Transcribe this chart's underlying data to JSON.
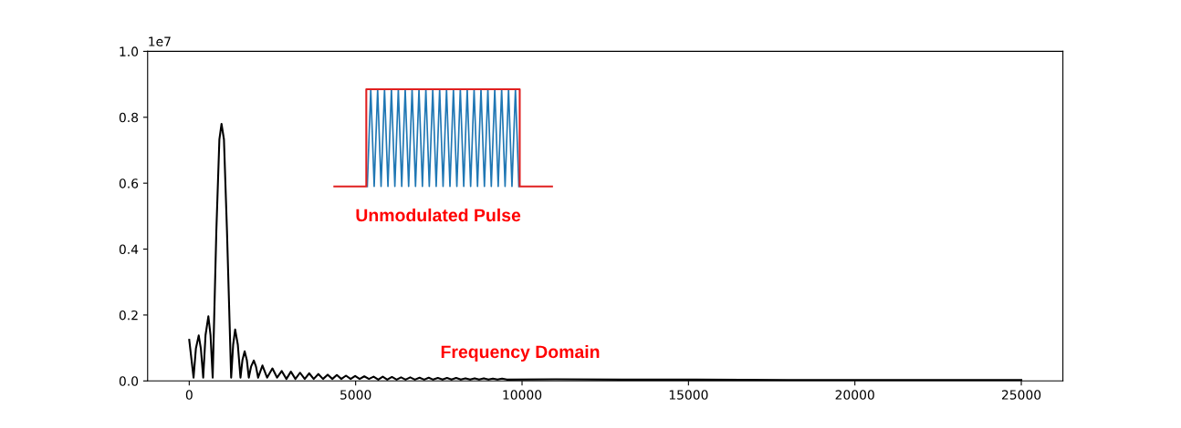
{
  "chart_data": {
    "type": "line",
    "x": [
      0,
      130,
      200,
      285,
      350,
      420,
      490,
      575,
      640,
      705,
      815,
      906,
      970,
      1043,
      1134,
      1260,
      1320,
      1380,
      1460,
      1540,
      1600,
      1665,
      1730,
      1790,
      1860,
      1940,
      2005,
      2070,
      2200,
      2340,
      2500,
      2640,
      2780,
      2920,
      3055,
      3190,
      3330,
      3470,
      3605,
      3740,
      3880,
      4020,
      4160,
      4300,
      4435,
      4570,
      4710,
      4850,
      4985,
      5120,
      5260,
      5400,
      5540,
      5680,
      5815,
      5950,
      6090,
      6230,
      6365,
      6500,
      6640,
      6780,
      6920,
      7060,
      7195,
      7330,
      7470,
      7610,
      7745,
      7880,
      8020,
      8160,
      8300,
      8440,
      8575,
      8710,
      8850,
      8990,
      9125,
      9260,
      9400,
      9540,
      11000,
      13000,
      15000,
      18000,
      21000,
      25000
    ],
    "series": [
      {
        "color": "#000000",
        "values": [
          0.125,
          0.01,
          0.098,
          0.138,
          0.098,
          0.01,
          0.139,
          0.196,
          0.139,
          0.01,
          0.456,
          0.733,
          0.78,
          0.733,
          0.456,
          0.01,
          0.11,
          0.156,
          0.11,
          0.01,
          0.064,
          0.09,
          0.064,
          0.01,
          0.044,
          0.062,
          0.044,
          0.01,
          0.047,
          0.01,
          0.038,
          0.01,
          0.03,
          0.006,
          0.028,
          0.006,
          0.025,
          0.006,
          0.023,
          0.006,
          0.021,
          0.006,
          0.019,
          0.006,
          0.018,
          0.006,
          0.016,
          0.006,
          0.015,
          0.006,
          0.014,
          0.006,
          0.013,
          0.004,
          0.013,
          0.004,
          0.012,
          0.004,
          0.011,
          0.004,
          0.011,
          0.004,
          0.01,
          0.004,
          0.01,
          0.004,
          0.009,
          0.004,
          0.009,
          0.004,
          0.009,
          0.004,
          0.008,
          0.004,
          0.008,
          0.004,
          0.008,
          0.004,
          0.007,
          0.004,
          0.007,
          0.004,
          0.005,
          0.004,
          0.004,
          0.003,
          0.003,
          0.003
        ]
      },
      {
        "color": "#1f77b4",
        "x": [
          5350,
          5454,
          5557,
          5661,
          5764,
          5868,
          5971,
          6075,
          6178,
          6282,
          6385,
          6489,
          6592,
          6696,
          6799,
          6903,
          7006,
          7110,
          7213,
          7317,
          7420,
          7524,
          7627,
          7731,
          7834,
          7938,
          8041,
          8145,
          8248,
          8352,
          8455,
          8559,
          8662,
          8766,
          8869,
          8973,
          9076,
          9180,
          9283,
          9387,
          9490,
          9594,
          9697,
          9801,
          9904
        ],
        "values": [
          0.59,
          0.885,
          0.59,
          0.885,
          0.59,
          0.885,
          0.59,
          0.885,
          0.59,
          0.885,
          0.59,
          0.885,
          0.59,
          0.885,
          0.59,
          0.885,
          0.59,
          0.885,
          0.59,
          0.885,
          0.59,
          0.885,
          0.59,
          0.885,
          0.59,
          0.885,
          0.59,
          0.885,
          0.59,
          0.885,
          0.59,
          0.885,
          0.59,
          0.885,
          0.59,
          0.885,
          0.59,
          0.885,
          0.59,
          0.885,
          0.59,
          0.885,
          0.59,
          0.885,
          0.59
        ]
      },
      {
        "color": "#e02020",
        "x": [
          4360,
          5320,
          5320,
          9930,
          9930,
          10900
        ],
        "values": [
          0.59,
          0.59,
          0.885,
          0.885,
          0.59,
          0.59
        ]
      }
    ],
    "xlim": [
      -1250,
      26250
    ],
    "xticks": [
      0,
      5000,
      10000,
      15000,
      20000,
      25000
    ],
    "ylim": [
      0.0,
      1.0
    ],
    "yticks": [
      {
        "value": 0,
        "label": "0.0"
      },
      0.2,
      0.4,
      0.6,
      0.8,
      {
        "value": 1,
        "label": "1.0"
      }
    ],
    "annotations": [
      "1e7",
      "Unmodulated Pulse",
      "Frequency Domain"
    ]
  }
}
